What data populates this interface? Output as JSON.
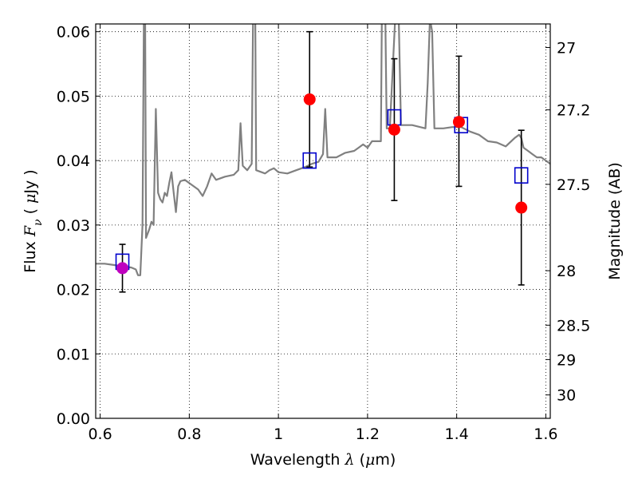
{
  "chart_data": {
    "type": "scatter",
    "xlabel": {
      "prefix": "Wavelength ",
      "symbol": "λ",
      "paren_open": " (",
      "unit_symbol": "μ",
      "unit_rest": "m)"
    },
    "ylabel": {
      "prefix": "Flux ",
      "symbol": "F",
      "subscript": "ν",
      "paren_open": "  ( ",
      "unit_symbol": "μ",
      "unit_rest": "Jy )"
    },
    "y2label": "Magnitude (AB)",
    "xlim": [
      0.59,
      1.61
    ],
    "ylim": [
      0.0,
      0.0612
    ],
    "grid": true,
    "x_ticks": [
      {
        "value": 0.6,
        "label": "0.6"
      },
      {
        "value": 0.8,
        "label": "0.8"
      },
      {
        "value": 1.0,
        "label": "1"
      },
      {
        "value": 1.2,
        "label": "1.2"
      },
      {
        "value": 1.4,
        "label": "1.4"
      },
      {
        "value": 1.6,
        "label": "1.6"
      }
    ],
    "y_ticks": [
      {
        "value": 0.0,
        "label": "0.00"
      },
      {
        "value": 0.01,
        "label": "0.01"
      },
      {
        "value": 0.02,
        "label": "0.02"
      },
      {
        "value": 0.03,
        "label": "0.03"
      },
      {
        "value": 0.04,
        "label": "0.04"
      },
      {
        "value": 0.05,
        "label": "0.05"
      },
      {
        "value": 0.06,
        "label": "0.06"
      }
    ],
    "mag_ticks": [
      {
        "mag": 27.0,
        "label": "27"
      },
      {
        "mag": 27.2,
        "label": "27.2"
      },
      {
        "mag": 27.5,
        "label": "27.5"
      },
      {
        "mag": 28.0,
        "label": "28"
      },
      {
        "mag": 28.5,
        "label": "28.5"
      },
      {
        "mag": 29.0,
        "label": "29"
      },
      {
        "mag": 30.0,
        "label": "30"
      }
    ],
    "series": [
      {
        "kind": "model-spectrum",
        "color": "#808080",
        "points": [
          [
            0.59,
            0.024
          ],
          [
            0.61,
            0.024
          ],
          [
            0.63,
            0.0238
          ],
          [
            0.65,
            0.0236
          ],
          [
            0.67,
            0.0234
          ],
          [
            0.68,
            0.0231
          ],
          [
            0.685,
            0.0222
          ],
          [
            0.69,
            0.0222
          ],
          [
            0.695,
            0.03
          ],
          [
            0.698,
            0.062
          ],
          [
            0.701,
            0.062
          ],
          [
            0.703,
            0.028
          ],
          [
            0.71,
            0.0293
          ],
          [
            0.715,
            0.0305
          ],
          [
            0.72,
            0.03
          ],
          [
            0.725,
            0.048
          ],
          [
            0.73,
            0.035
          ],
          [
            0.735,
            0.034
          ],
          [
            0.74,
            0.0335
          ],
          [
            0.745,
            0.035
          ],
          [
            0.75,
            0.0345
          ],
          [
            0.755,
            0.0365
          ],
          [
            0.76,
            0.0382
          ],
          [
            0.765,
            0.035
          ],
          [
            0.77,
            0.032
          ],
          [
            0.775,
            0.036
          ],
          [
            0.78,
            0.0368
          ],
          [
            0.79,
            0.037
          ],
          [
            0.8,
            0.0365
          ],
          [
            0.82,
            0.0355
          ],
          [
            0.83,
            0.0345
          ],
          [
            0.84,
            0.036
          ],
          [
            0.85,
            0.038
          ],
          [
            0.86,
            0.037
          ],
          [
            0.88,
            0.0375
          ],
          [
            0.9,
            0.0378
          ],
          [
            0.91,
            0.0385
          ],
          [
            0.915,
            0.0458
          ],
          [
            0.92,
            0.0392
          ],
          [
            0.93,
            0.0385
          ],
          [
            0.94,
            0.0395
          ],
          [
            0.943,
            0.062
          ],
          [
            0.948,
            0.062
          ],
          [
            0.95,
            0.0385
          ],
          [
            0.97,
            0.038
          ],
          [
            0.98,
            0.0385
          ],
          [
            0.99,
            0.0388
          ],
          [
            1.0,
            0.0382
          ],
          [
            1.02,
            0.038
          ],
          [
            1.04,
            0.0385
          ],
          [
            1.06,
            0.039
          ],
          [
            1.075,
            0.0395
          ],
          [
            1.09,
            0.0398
          ],
          [
            1.1,
            0.041
          ],
          [
            1.105,
            0.048
          ],
          [
            1.11,
            0.0405
          ],
          [
            1.13,
            0.0405
          ],
          [
            1.15,
            0.0412
          ],
          [
            1.17,
            0.0415
          ],
          [
            1.18,
            0.042
          ],
          [
            1.19,
            0.0425
          ],
          [
            1.2,
            0.042
          ],
          [
            1.21,
            0.043
          ],
          [
            1.22,
            0.043
          ],
          [
            1.23,
            0.043
          ],
          [
            1.232,
            0.062
          ],
          [
            1.24,
            0.062
          ],
          [
            1.243,
            0.045
          ],
          [
            1.25,
            0.045
          ],
          [
            1.262,
            0.062
          ],
          [
            1.27,
            0.062
          ],
          [
            1.275,
            0.0455
          ],
          [
            1.3,
            0.0455
          ],
          [
            1.33,
            0.045
          ],
          [
            1.335,
            0.052
          ],
          [
            1.34,
            0.062
          ],
          [
            1.345,
            0.06
          ],
          [
            1.35,
            0.045
          ],
          [
            1.37,
            0.045
          ],
          [
            1.39,
            0.0452
          ],
          [
            1.41,
            0.0452
          ],
          [
            1.43,
            0.0445
          ],
          [
            1.45,
            0.044
          ],
          [
            1.47,
            0.043
          ],
          [
            1.49,
            0.0428
          ],
          [
            1.51,
            0.0422
          ],
          [
            1.53,
            0.0435
          ],
          [
            1.54,
            0.044
          ],
          [
            1.545,
            0.0435
          ],
          [
            1.55,
            0.042
          ],
          [
            1.56,
            0.0415
          ],
          [
            1.57,
            0.041
          ],
          [
            1.58,
            0.0405
          ],
          [
            1.59,
            0.0405
          ],
          [
            1.6,
            0.04
          ],
          [
            1.61,
            0.0395
          ]
        ]
      }
    ],
    "model_photometry": {
      "kind": "open-square",
      "color": "#0000cc",
      "points": [
        {
          "x": 0.65,
          "y": 0.0243
        },
        {
          "x": 1.07,
          "y": 0.04
        },
        {
          "x": 1.26,
          "y": 0.0467
        },
        {
          "x": 1.41,
          "y": 0.0455
        },
        {
          "x": 1.545,
          "y": 0.0377
        }
      ]
    },
    "observed_photometry": {
      "kind": "filled-circle-errorbar",
      "points": [
        {
          "x": 0.65,
          "y": 0.0233,
          "yerr_low": 0.0037,
          "yerr_high": 0.0037,
          "color": "#bf00bf"
        },
        {
          "x": 1.07,
          "y": 0.0495,
          "yerr_low": 0.0105,
          "yerr_high": 0.0105,
          "color": "#ff0000"
        },
        {
          "x": 1.26,
          "y": 0.0448,
          "yerr_low": 0.011,
          "yerr_high": 0.011,
          "color": "#ff0000"
        },
        {
          "x": 1.405,
          "y": 0.046,
          "yerr_low": 0.01,
          "yerr_high": 0.0102,
          "color": "#ff0000"
        },
        {
          "x": 1.545,
          "y": 0.0327,
          "yerr_low": 0.012,
          "yerr_high": 0.012,
          "color": "#ff0000"
        }
      ]
    }
  }
}
